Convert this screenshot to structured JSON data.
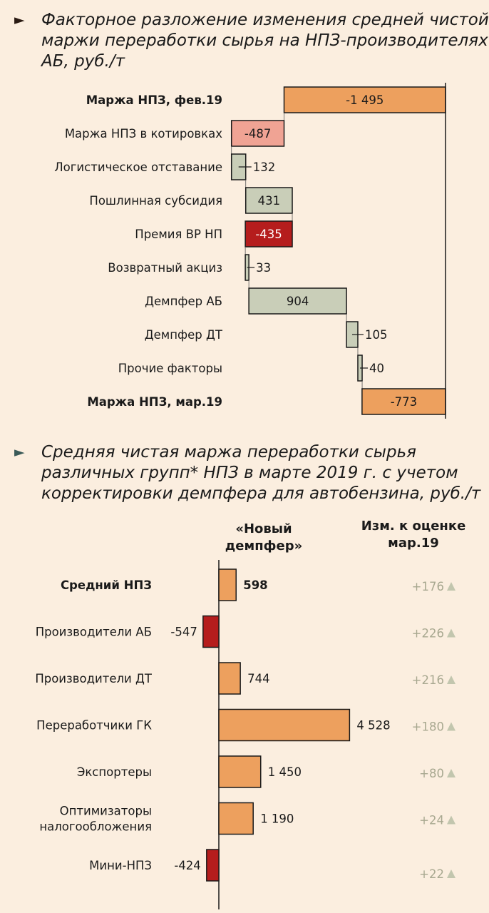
{
  "chart_data": [
    {
      "type": "waterfall",
      "title_lines": [
        "Факторное разложение изменения средней чистой",
        "маржи переработки сырья на НПЗ-производителях",
        "АБ, руб./т"
      ],
      "items": [
        {
          "label": "Маржа НПЗ, фев.19",
          "value": -1495,
          "display": "-1 495",
          "kind": "total",
          "bold": true
        },
        {
          "label": "Маржа НПЗ в котировках",
          "value": -487,
          "display": "-487",
          "kind": "delta",
          "color": "#f0a394"
        },
        {
          "label": "Логистическое отставание",
          "value": 132,
          "display": "132",
          "kind": "delta",
          "color": "#c9ceb8"
        },
        {
          "label": "Пошлинная субсидия",
          "value": 431,
          "display": "431",
          "kind": "delta",
          "color": "#c9ceb8"
        },
        {
          "label": "Премия ВР НП",
          "value": -435,
          "display": "-435",
          "kind": "delta",
          "color": "#b51d1d"
        },
        {
          "label": "Возвратный акциз",
          "value": 33,
          "display": "33",
          "kind": "delta",
          "color": "#c9ceb8"
        },
        {
          "label": "Демпфер АБ",
          "value": 904,
          "display": "904",
          "kind": "delta",
          "color": "#c9ceb8"
        },
        {
          "label": "Демпфер ДТ",
          "value": 105,
          "display": "105",
          "kind": "delta",
          "color": "#c9ceb8"
        },
        {
          "label": "Прочие факторы",
          "value": 40,
          "display": "40",
          "kind": "delta",
          "color": "#c9ceb8"
        },
        {
          "label": "Маржа НПЗ, мар.19",
          "value": -773,
          "display": "-773",
          "kind": "total",
          "bold": true
        }
      ],
      "total_color": "#eda05e"
    },
    {
      "type": "bar",
      "title_lines": [
        "Средняя чистая маржа переработки сырья",
        "различных групп* НПЗ в марте 2019 г. с учетом",
        "корректировки демпфера для автобензина, руб./т"
      ],
      "column_header_lines": [
        "«Новый",
        "демпфер»"
      ],
      "change_header_lines": [
        "Изм. к оценке",
        "мар.19"
      ],
      "categories": [
        [
          "Средний НПЗ"
        ],
        [
          "Производители АБ"
        ],
        [
          "Производители ДТ"
        ],
        [
          "Переработчики ГК"
        ],
        [
          "Экспортеры"
        ],
        [
          "Оптимизаторы",
          "налогообложения"
        ],
        [
          "Мини-НПЗ"
        ]
      ],
      "values": [
        598,
        -547,
        744,
        4528,
        1450,
        1190,
        -424
      ],
      "value_labels": [
        "598",
        "-547",
        "744",
        "4 528",
        "1 450",
        "1 190",
        "-424"
      ],
      "changes": [
        "+176",
        "+226",
        "+216",
        "+180",
        "+80",
        "+24",
        "+22"
      ],
      "bold_index": 0,
      "positive_color": "#eda05e",
      "negative_color": "#b51d1d",
      "change_color": "#a8a890",
      "up_marker_color": "#c2c6ae"
    }
  ]
}
